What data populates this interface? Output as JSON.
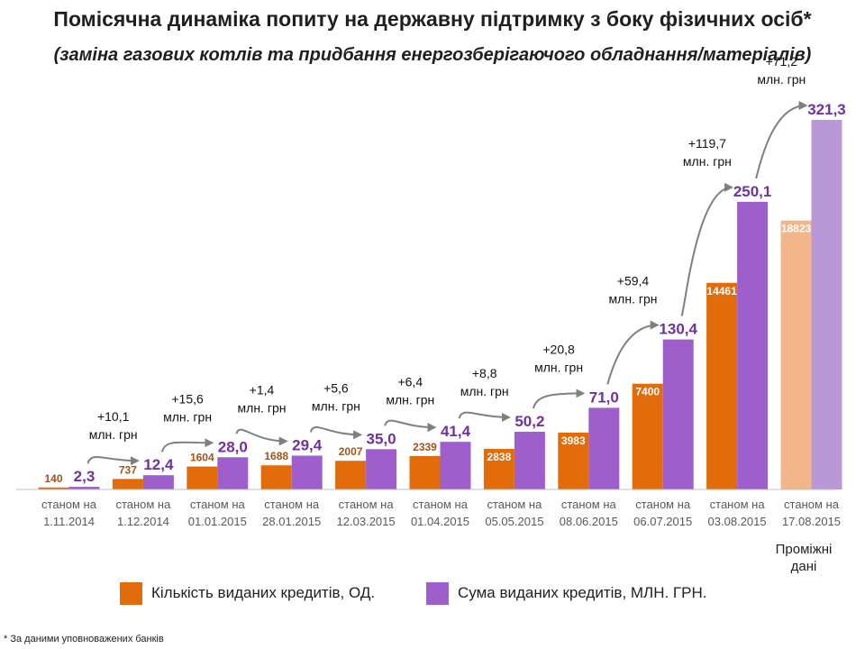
{
  "header": {
    "title": "Помісячна динаміка попиту на державну підтримку з боку фізичних осіб*",
    "subtitle": "(заміна газових котлів  та  придбання енергозберігаючого обладнання/матеріалів)"
  },
  "chart_data": {
    "type": "bar",
    "categories": [
      [
        "станом на",
        "1.11.2014"
      ],
      [
        "станом на",
        "1.12.2014"
      ],
      [
        "станом на",
        "01.01.2015"
      ],
      [
        "станом на",
        "28.01.2015"
      ],
      [
        "станом на",
        "12.03.2015"
      ],
      [
        "станом на",
        "01.04.2015"
      ],
      [
        "станом на",
        "05.05.2015"
      ],
      [
        "станом на",
        "08.06.2015"
      ],
      [
        "станом на",
        "06.07.2015"
      ],
      [
        "станом на",
        "03.08.2015"
      ],
      [
        "станом на",
        "17.08.2015"
      ]
    ],
    "series": [
      {
        "name": "Кількість виданих кредитів, ОД.",
        "color": "#e36c0a",
        "faded_color": "#f3b68a",
        "values": [
          140,
          737,
          1604,
          1688,
          2007,
          2339,
          2838,
          3983,
          7400,
          14461,
          18823
        ],
        "labels": [
          "140",
          "737",
          "1604",
          "1688",
          "2007",
          "2339",
          "2838",
          "3983",
          "7400",
          "14461",
          "18823"
        ]
      },
      {
        "name": "Сума виданих кредитів, МЛН. ГРН.",
        "color": "#9e5fcc",
        "faded_color": "#b898d6",
        "values": [
          2.3,
          12.4,
          28.0,
          29.4,
          35.0,
          41.4,
          50.2,
          71.0,
          130.4,
          250.1,
          321.3
        ],
        "labels": [
          "2,3",
          "12,4",
          "28,0",
          "29,4",
          "35,0",
          "41,4",
          "50,2",
          "71,0",
          "130,4",
          "250,1",
          "321,3"
        ]
      }
    ],
    "increments": [
      {
        "from": 0,
        "to": 1,
        "value": "+10,1",
        "unit": "млн. грн"
      },
      {
        "from": 1,
        "to": 2,
        "value": "+15,6",
        "unit": "млн. грн"
      },
      {
        "from": 2,
        "to": 3,
        "value": "+1,4",
        "unit": "млн. грн"
      },
      {
        "from": 3,
        "to": 4,
        "value": "+5,6",
        "unit": "млн. грн"
      },
      {
        "from": 4,
        "to": 5,
        "value": "+6,4",
        "unit": "млн. грн"
      },
      {
        "from": 5,
        "to": 6,
        "value": "+8,8",
        "unit": "млн. грн"
      },
      {
        "from": 6,
        "to": 7,
        "value": "+20,8",
        "unit": "млн. грн"
      },
      {
        "from": 7,
        "to": 8,
        "value": "+59,4",
        "unit": "млн. грн"
      },
      {
        "from": 8,
        "to": 9,
        "value": "+119,7",
        "unit": "млн. грн"
      },
      {
        "from": 9,
        "to": 10,
        "value": "+71,2",
        "unit": "млн. грн"
      }
    ],
    "interim_category_index": 10,
    "interim_note": "Проміжні дані",
    "grid": false,
    "legend_position": "bottom"
  },
  "legend": {
    "count_label": "Кількість виданих кредитів, ОД.",
    "sum_label": "Сума виданих кредитів, МЛН. ГРН."
  },
  "footnote": "* За даними уповноважених банків"
}
